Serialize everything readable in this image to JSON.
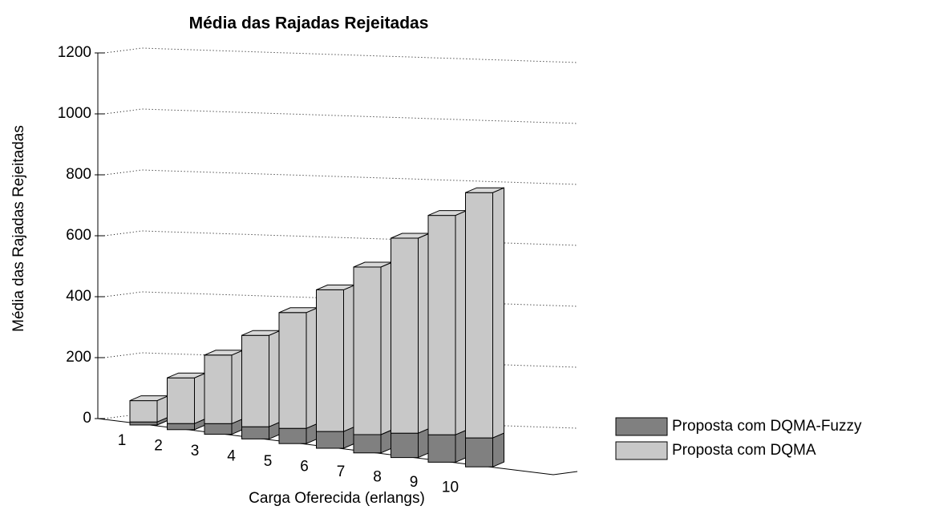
{
  "chart_data": {
    "type": "bar3d_stacked",
    "title": "Média das Rajadas Rejeitadas",
    "xlabel": "Carga Oferecida (erlangs)",
    "ylabel": "Média das Rajadas Rejeitadas",
    "categories": [
      "1",
      "2",
      "3",
      "4",
      "5",
      "6",
      "7",
      "8",
      "9",
      "10"
    ],
    "series": [
      {
        "name": "Proposta com DQMA-Fuzzy",
        "color": "#808080",
        "values": [
          10,
          20,
          35,
          40,
          50,
          55,
          60,
          80,
          90,
          95
        ]
      },
      {
        "name": "Proposta com DQMA",
        "color": "#c8c8c8",
        "values": [
          70,
          150,
          225,
          300,
          380,
          465,
          550,
          640,
          720,
          805
        ]
      }
    ],
    "ylim": [
      0,
      1200
    ],
    "yticks": [
      0,
      200,
      400,
      600,
      800,
      1000,
      1200
    ],
    "grid": true
  }
}
